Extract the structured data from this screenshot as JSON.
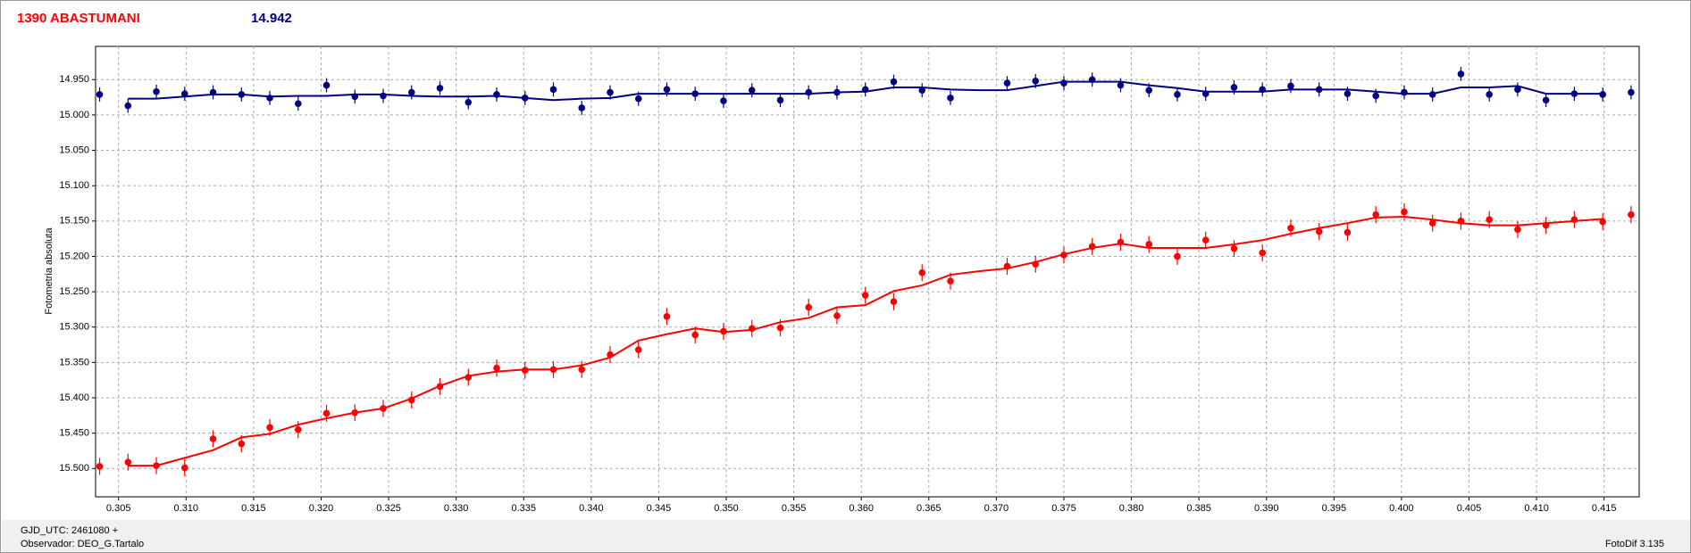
{
  "chart_data": {
    "type": "scatter",
    "title": "1390 ABASTUMANI",
    "subtitle": "14.942",
    "y_label": "Fotometria absoluta",
    "footer": {
      "gjd": "GJD_UTC: 2461080 +",
      "observer": "Observador: DEO_G.Tartalo",
      "software": "FotoDif 3.135"
    },
    "grid": true,
    "xlim": [
      0.3033,
      0.4176
    ],
    "ylim": [
      15.54,
      14.903
    ],
    "xticks": [
      0.305,
      {
        "value": 0.31,
        "label": "0.310"
      },
      0.315,
      {
        "value": 0.32,
        "label": "0.320"
      },
      0.325,
      {
        "value": 0.33,
        "label": "0.330"
      },
      0.335,
      {
        "value": 0.34,
        "label": "0.340"
      },
      0.345,
      {
        "value": 0.35,
        "label": "0.350"
      },
      0.355,
      {
        "value": 0.36,
        "label": "0.360"
      },
      0.365,
      {
        "value": 0.37,
        "label": "0.370"
      },
      0.375,
      {
        "value": 0.38,
        "label": "0.380"
      },
      0.385,
      {
        "value": 0.39,
        "label": "0.390"
      },
      0.395,
      {
        "value": 0.4,
        "label": "0.400"
      },
      0.405,
      {
        "value": 0.41,
        "label": "0.410"
      },
      0.415
    ],
    "yticks": [
      {
        "value": 14.95,
        "label": "14.950"
      },
      {
        "value": 15.0,
        "label": "15.000"
      },
      {
        "value": 15.05,
        "label": "15.050"
      },
      {
        "value": 15.1,
        "label": "15.100"
      },
      {
        "value": 15.15,
        "label": "15.150"
      },
      {
        "value": 15.2,
        "label": "15.200"
      },
      {
        "value": 15.25,
        "label": "15.250"
      },
      {
        "value": 15.3,
        "label": "15.300"
      },
      {
        "value": 15.35,
        "label": "15.350"
      },
      {
        "value": 15.4,
        "label": "15.400"
      },
      {
        "value": 15.45,
        "label": "15.450"
      },
      {
        "value": 15.5,
        "label": "15.500"
      }
    ],
    "x": [
      0.3036,
      0.3057,
      0.3078,
      0.3099,
      0.312,
      0.3141,
      0.3162,
      0.3183,
      0.3204,
      0.3225,
      0.3246,
      0.3267,
      0.3288,
      0.3309,
      0.333,
      0.3351,
      0.3372,
      0.3393,
      0.3414,
      0.3435,
      0.3456,
      0.3477,
      0.3498,
      0.3519,
      0.354,
      0.3561,
      0.3582,
      0.3603,
      0.3624,
      0.3645,
      0.3666,
      0.3687,
      0.3708,
      0.3729,
      0.375,
      0.3771,
      0.3792,
      0.3813,
      0.3834,
      0.3855,
      0.3876,
      0.3897,
      0.3918,
      0.3939,
      0.396,
      0.3981,
      0.4002,
      0.4023,
      0.4044,
      0.4065,
      0.4086,
      0.4107,
      0.4128,
      0.4149,
      0.417
    ],
    "series": [
      {
        "color": "#000080",
        "error": 0.01,
        "values": [
          14.971,
          14.987,
          14.967,
          14.97,
          14.968,
          14.971,
          14.976,
          14.984,
          14.958,
          14.974,
          14.973,
          14.968,
          14.962,
          14.982,
          14.971,
          14.976,
          14.964,
          14.99,
          14.968,
          14.977,
          14.964,
          14.97,
          14.98,
          14.965,
          14.979,
          14.968,
          14.968,
          14.964,
          14.953,
          14.965,
          14.976,
          null,
          14.955,
          14.952,
          14.955,
          14.95,
          14.958,
          14.965,
          14.971,
          14.97,
          14.961,
          14.964,
          14.959,
          14.964,
          14.97,
          14.973,
          14.968,
          14.971,
          14.942,
          14.971,
          14.964,
          14.979,
          14.97,
          14.971,
          14.968
        ],
        "fit": [
          null,
          14.977,
          14.977,
          14.974,
          14.971,
          14.971,
          14.974,
          14.973,
          14.973,
          14.971,
          14.971,
          14.973,
          14.974,
          14.974,
          14.973,
          14.976,
          14.979,
          14.977,
          14.976,
          14.97,
          14.97,
          14.97,
          14.97,
          14.97,
          14.97,
          14.97,
          14.968,
          14.967,
          14.961,
          14.961,
          14.964,
          14.965,
          14.965,
          14.959,
          14.953,
          14.953,
          14.953,
          14.958,
          14.962,
          14.967,
          14.967,
          14.967,
          14.964,
          14.964,
          14.964,
          14.967,
          14.97,
          14.97,
          14.961,
          14.961,
          14.959,
          14.97,
          14.97,
          14.97,
          null
        ]
      },
      {
        "color": "#ff0000",
        "error": 0.012,
        "values": [
          15.497,
          15.491,
          15.496,
          15.499,
          15.458,
          15.465,
          15.442,
          15.445,
          15.422,
          15.421,
          15.415,
          15.403,
          15.384,
          15.371,
          15.358,
          15.361,
          15.36,
          15.36,
          15.339,
          15.332,
          15.285,
          15.311,
          15.306,
          15.302,
          15.301,
          15.272,
          15.284,
          15.255,
          15.264,
          15.223,
          15.235,
          null,
          15.214,
          15.211,
          15.198,
          15.186,
          15.18,
          15.183,
          15.2,
          15.177,
          15.189,
          15.195,
          15.16,
          15.165,
          15.166,
          15.141,
          15.137,
          15.153,
          15.15,
          15.148,
          15.162,
          15.156,
          15.148,
          15.151,
          15.141
        ],
        "fit": [
          null,
          15.496,
          15.496,
          15.485,
          15.474,
          15.456,
          15.451,
          15.438,
          15.429,
          15.421,
          15.415,
          15.401,
          15.383,
          15.369,
          15.363,
          15.36,
          15.36,
          15.354,
          15.343,
          15.319,
          15.31,
          15.302,
          15.307,
          15.304,
          15.293,
          15.287,
          15.272,
          15.269,
          15.249,
          15.241,
          15.226,
          15.221,
          15.217,
          15.208,
          15.197,
          15.188,
          15.182,
          15.188,
          15.188,
          15.188,
          15.183,
          15.177,
          15.168,
          15.16,
          15.153,
          15.145,
          15.144,
          15.148,
          15.153,
          15.156,
          15.156,
          15.153,
          15.15,
          15.147,
          null
        ]
      }
    ]
  }
}
